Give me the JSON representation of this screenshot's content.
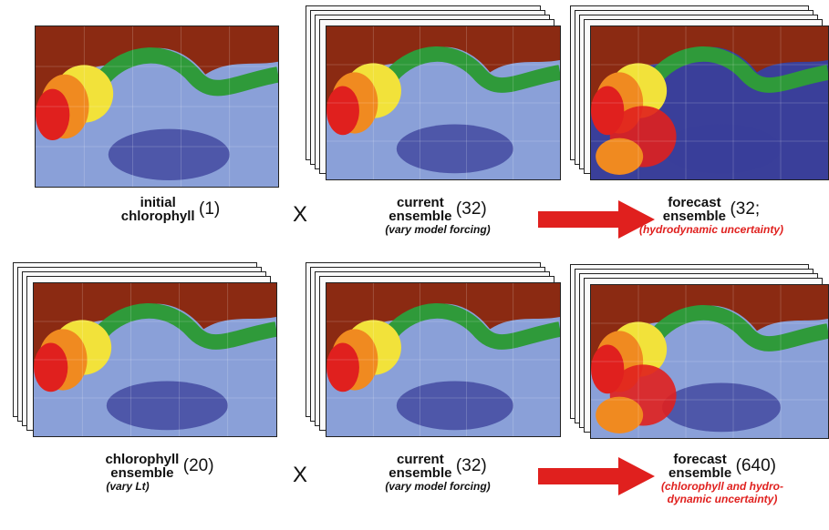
{
  "row1": {
    "p1": {
      "main": "initial\nchlorophyll",
      "count": "(1)",
      "sub": "",
      "stacked": false,
      "sub_red": false
    },
    "op": "X",
    "p2": {
      "main": "current\nensemble",
      "count": "(32)",
      "sub": "(vary model forcing)",
      "stacked": true,
      "sub_red": false
    },
    "p3": {
      "main": "forecast\nensemble",
      "count": "(32;",
      "sub": "(hydrodynamic uncertainty)",
      "stacked": true,
      "sub_red": true
    }
  },
  "row2": {
    "p1": {
      "main": "chlorophyll\nensemble",
      "count": "(20)",
      "sub": "(vary Lt)",
      "stacked": true,
      "sub_red": false
    },
    "op": "X",
    "p2": {
      "main": "current\nensemble",
      "count": "(32)",
      "sub": "(vary model forcing)",
      "stacked": true,
      "sub_red": false
    },
    "p3": {
      "main": "forecast\nensemble",
      "count": "(640)",
      "sub": "(chlorophyll and hydro-\ndynamic uncertainty)",
      "stacked": true,
      "sub_red": true
    }
  },
  "colors": {
    "land": "#8b2a12",
    "ocean_light": "#8aa0d8",
    "ocean_dark": "#3a3f9a",
    "green": "#2f9a3a",
    "yellow": "#f2e23a",
    "orange": "#f08a20",
    "red": "#e0201e",
    "arrow": "#e0201e"
  }
}
